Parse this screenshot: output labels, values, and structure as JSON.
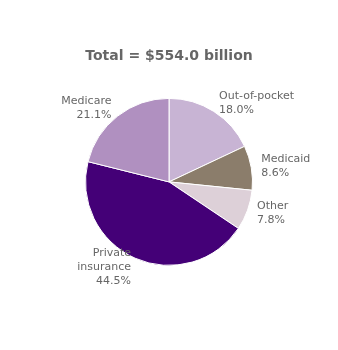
{
  "chart_data": {
    "type": "pie",
    "title": "Total = $554.0 billion",
    "categories": [
      "Out-of-pocket",
      "Medicaid",
      "Other",
      "Private\ninsurance",
      "Medicare"
    ],
    "values": [
      18.0,
      8.6,
      7.8,
      44.5,
      21.1
    ],
    "value_labels": [
      "18.0%",
      "8.6%",
      "7.8%",
      "44.5%",
      "21.1%"
    ],
    "data_labels": true,
    "colors": [
      "#c8b4d4",
      "#8b7d6b",
      "#ddd0d8",
      "#440077",
      "#b090c0"
    ]
  }
}
